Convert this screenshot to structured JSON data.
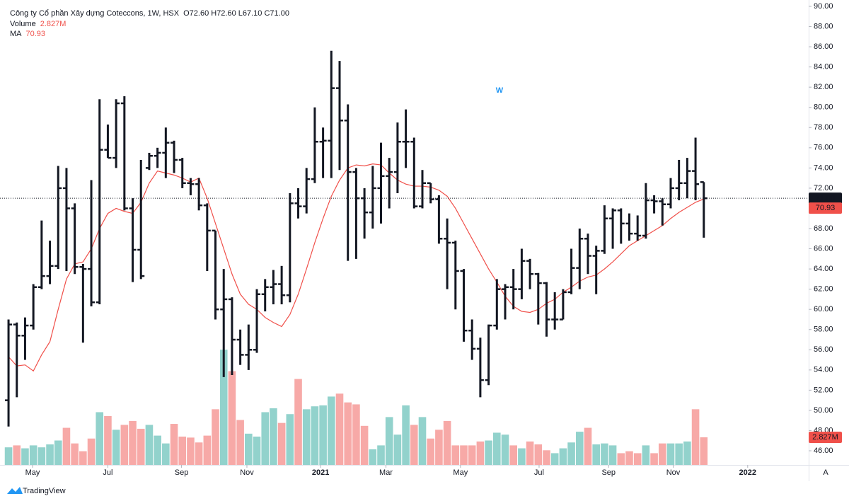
{
  "chart_data": {
    "type": "ohlc",
    "title": "Công ty Cổ phần Xây dựng Coteccons, 1W, HSX",
    "ohlc_label": "O72.60 H72.60 L67.10 C71.00",
    "bar_color": "#131722",
    "open": [
      51,
      58.5,
      57.4,
      58.4,
      62.2,
      63.3,
      64.3,
      72,
      70,
      64.2,
      64,
      60.7,
      75.8,
      75,
      80.4,
      70,
      65.9,
      74,
      75.2,
      75.5,
      76.5,
      74.8,
      72.5,
      72.4,
      70.3,
      67.8,
      60,
      61,
      57,
      55.5,
      56,
      61.5,
      62.2,
      62.5,
      61.4,
      70.5,
      70.2,
      72.9,
      76.6,
      76.7,
      81.9,
      78.7,
      73.6,
      71,
      69.6,
      72,
      73.2,
      73.6,
      76.6,
      76.6,
      70.2,
      72.5,
      70.9,
      67,
      66.6,
      63.8,
      57.9,
      56.1,
      53,
      58.4,
      62,
      62.2,
      62,
      64.8,
      63.5,
      62.6,
      59,
      59,
      61.7,
      64.1,
      67,
      65.3,
      65.8,
      69,
      69.8,
      68.5,
      67.5,
      67.3,
      70.8,
      70.7,
      70.4,
      72,
      72.5,
      73.7,
      72.6
    ],
    "high": [
      59,
      58.7,
      59.2,
      62.5,
      68.8,
      66.8,
      74.2,
      74,
      70.5,
      64.5,
      72.8,
      80.8,
      78.3,
      80.8,
      81.1,
      71,
      74.8,
      75.5,
      76,
      78,
      76.7,
      75,
      73,
      73,
      70.5,
      67.8,
      64,
      61.2,
      58,
      58.5,
      62,
      63,
      63.9,
      64.3,
      71.5,
      72,
      74,
      80,
      78,
      85.6,
      84.6,
      80.3,
      74,
      72,
      74.2,
      76.5,
      75,
      78.5,
      79.8,
      77,
      73.8,
      72.5,
      71.3,
      69,
      66.8,
      64,
      59,
      57.2,
      58.5,
      63,
      62.5,
      64,
      66,
      65,
      63.6,
      62.7,
      61.7,
      62,
      66,
      68,
      67.5,
      66.3,
      70.3,
      70,
      70,
      69.5,
      69.3,
      72.5,
      71.3,
      71,
      73,
      74.8,
      75,
      77,
      72.6
    ],
    "low": [
      48.4,
      51.3,
      55,
      58,
      62,
      62.5,
      64,
      63.8,
      63.5,
      56.7,
      60.3,
      60.5,
      75,
      74,
      69.8,
      62.7,
      63,
      73.8,
      74,
      73,
      73.5,
      72,
      71.3,
      69.8,
      63.8,
      59,
      53.3,
      53.5,
      54.5,
      54,
      55.7,
      59.8,
      60.5,
      60.5,
      60.7,
      69,
      69.5,
      72.5,
      73,
      73,
      73.8,
      64.8,
      65,
      67,
      68,
      68.5,
      70,
      71.5,
      74,
      70,
      70,
      70.5,
      66.5,
      62,
      60,
      56.8,
      55,
      51.3,
      52.5,
      58,
      59,
      60,
      61,
      62,
      58.5,
      57.3,
      58,
      59,
      61.5,
      62,
      63.5,
      61.5,
      65.5,
      66,
      66.5,
      66.8,
      66.8,
      67,
      69.5,
      68.3,
      70,
      70.8,
      71,
      70.8,
      67.1
    ],
    "close": [
      58.5,
      57.4,
      58.4,
      62.2,
      63.3,
      64.3,
      72,
      70,
      64.2,
      64,
      60.7,
      75.8,
      75,
      80.4,
      70,
      65.9,
      63.3,
      75.2,
      75.5,
      76.5,
      74.8,
      72.5,
      72.4,
      70.3,
      67.8,
      60,
      61,
      57,
      55.5,
      56,
      61.5,
      62.2,
      62.5,
      61.4,
      70.5,
      70.2,
      72.9,
      76.6,
      76.7,
      81.9,
      78.7,
      73.6,
      71,
      69.6,
      72,
      73.2,
      73.6,
      76.6,
      76.6,
      70.2,
      72.5,
      70.9,
      67,
      66.6,
      63.8,
      57.9,
      56.1,
      53,
      58.4,
      62,
      62.2,
      62,
      64.8,
      63.5,
      62.6,
      59,
      59,
      61.7,
      64.1,
      67,
      65.3,
      65.8,
      69,
      69.8,
      68.5,
      67.5,
      67.3,
      70.8,
      70.7,
      70.4,
      72,
      72.5,
      73.7,
      72.4,
      71
    ],
    "last_close_label": "71.00",
    "volume": {
      "name": "Volume",
      "up_color": "#92d2cc",
      "down_color": "#f7a9a7",
      "last_label": "2.827M",
      "values": [
        1.8,
        2.0,
        1.7,
        2.0,
        1.8,
        2.1,
        2.5,
        3.8,
        2.2,
        1.4,
        2.7,
        5.4,
        5.0,
        3.6,
        4.1,
        4.5,
        3.7,
        4.1,
        3.0,
        2.2,
        4.2,
        2.9,
        2.8,
        2.3,
        3.0,
        5.7,
        11.8,
        9.6,
        4.6,
        3.2,
        2.9,
        5.4,
        5.8,
        4.3,
        5.2,
        8.8,
        5.7,
        6.0,
        6.1,
        7.0,
        7.3,
        6.4,
        6.2,
        4.0,
        1.6,
        2.0,
        4.9,
        3.1,
        6.1,
        4.1,
        4.9,
        2.7,
        3.6,
        4.5,
        2.0,
        2.0,
        2.0,
        2.4,
        2.5,
        3.3,
        3.1,
        2.0,
        1.7,
        2.4,
        2.1,
        1.5,
        1.2,
        1.7,
        2.3,
        3.4,
        3.8,
        2.1,
        2.2,
        2.0,
        1.2,
        1.4,
        1.2,
        2.0,
        1.2,
        2.2,
        2.2,
        2.2,
        2.4,
        5.7,
        2.827
      ]
    },
    "ma": {
      "name": "MA",
      "color": "#f0504a",
      "last_label": "70.93",
      "values": [
        55.3,
        54.4,
        54.5,
        53.9,
        55.5,
        56.8,
        60,
        63,
        64.5,
        64.7,
        66,
        68,
        69.5,
        70,
        69.7,
        69.5,
        70.6,
        72.5,
        73.7,
        73.5,
        73.3,
        73,
        72.6,
        73,
        71,
        68.5,
        66,
        63.5,
        61.5,
        60.5,
        60,
        59.2,
        58.7,
        58.3,
        59.5,
        61.5,
        64,
        66.6,
        69,
        71.2,
        72.8,
        74,
        74.3,
        74.2,
        74.4,
        74.3,
        73.5,
        72.8,
        72.4,
        72.2,
        72.2,
        72.1,
        71.8,
        71.2,
        70,
        68.5,
        67,
        65.5,
        64,
        62.7,
        61.3,
        60.3,
        59.8,
        59.7,
        60,
        60.6,
        61,
        61.7,
        62.2,
        62.8,
        63.2,
        63.4,
        64,
        64.7,
        65.5,
        66.3,
        66.8,
        67.3,
        67.8,
        68.3,
        69,
        69.6,
        70.1,
        70.6,
        70.93
      ]
    },
    "annotation": {
      "text": "W",
      "color": "#2196f3"
    },
    "ylim": [
      44.6,
      90.63
    ],
    "yticks": [
      {
        "value": 46,
        "label": "46.00"
      },
      {
        "value": 48,
        "label": "48.00"
      },
      {
        "value": 50,
        "label": "50.00"
      },
      {
        "value": 52,
        "label": "52.00"
      },
      {
        "value": 54,
        "label": "54.00"
      },
      {
        "value": 56,
        "label": "56.00"
      },
      {
        "value": 58,
        "label": "58.00"
      },
      {
        "value": 60,
        "label": "60.00"
      },
      {
        "value": 62,
        "label": "62.00"
      },
      {
        "value": 64,
        "label": "64.00"
      },
      {
        "value": 66,
        "label": "66.00"
      },
      {
        "value": 68,
        "label": "68.00"
      },
      {
        "value": 70,
        "label": "70.00"
      },
      {
        "value": 72,
        "label": "72.00"
      },
      {
        "value": 74,
        "label": "74.00"
      },
      {
        "value": 76,
        "label": "76.00"
      },
      {
        "value": 78,
        "label": "78.00"
      },
      {
        "value": 80,
        "label": "80.00"
      },
      {
        "value": 82,
        "label": "82.00"
      },
      {
        "value": 84,
        "label": "84.00"
      },
      {
        "value": 86,
        "label": "86.00"
      },
      {
        "value": 88,
        "label": "88.00"
      },
      {
        "value": 90,
        "label": "90.00"
      }
    ],
    "xlim": [
      -1.03,
      96.67
    ],
    "xticks": [
      {
        "value": 2.9,
        "label": "May"
      },
      {
        "value": 12,
        "label": "Jul"
      },
      {
        "value": 20.9,
        "label": "Sep"
      },
      {
        "value": 28.8,
        "label": "Nov"
      },
      {
        "value": 37.7,
        "label": "2021"
      },
      {
        "value": 45.6,
        "label": "Mar"
      },
      {
        "value": 54.6,
        "label": "May"
      },
      {
        "value": 64.1,
        "label": "Jul"
      },
      {
        "value": 72.5,
        "label": "Sep"
      },
      {
        "value": 80.3,
        "label": "Nov"
      },
      {
        "value": 89.3,
        "label": "2022"
      }
    ],
    "brand": "TradingView",
    "scale_button": "A"
  }
}
